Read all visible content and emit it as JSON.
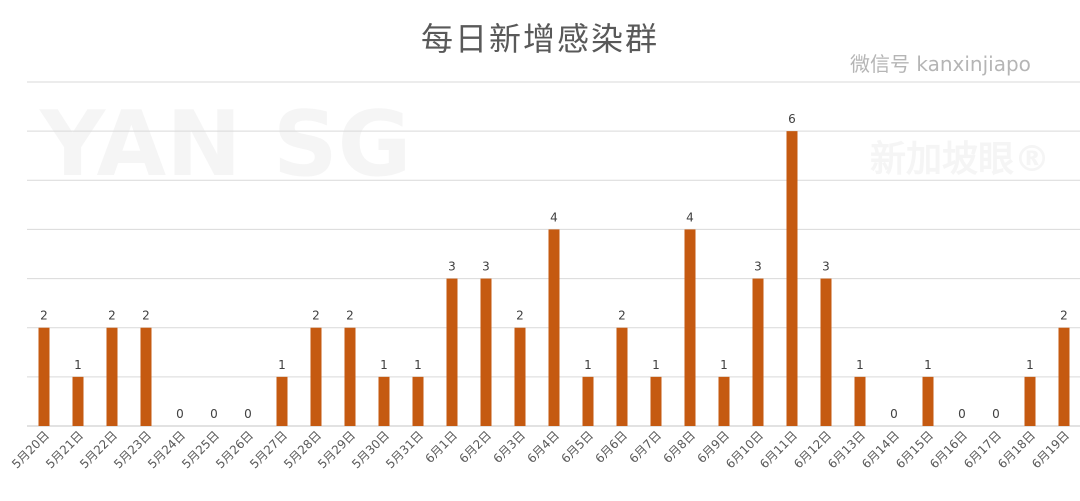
{
  "chart_data": {
    "type": "bar",
    "title": "每日新增感染群",
    "xlabel": "",
    "ylabel": "",
    "ylim": [
      0,
      7
    ],
    "grid": true,
    "legend": "none",
    "bar_color": "#C55A11",
    "categories": [
      "5月20日",
      "5月21日",
      "5月22日",
      "5月23日",
      "5月24日",
      "5月25日",
      "5月26日",
      "5月27日",
      "5月28日",
      "5月29日",
      "5月30日",
      "5月31日",
      "6月1日",
      "6月2日",
      "6月3日",
      "6月4日",
      "6月5日",
      "6月6日",
      "6月7日",
      "6月8日",
      "6月9日",
      "6月10日",
      "6月11日",
      "6月12日",
      "6月13日",
      "6月14日",
      "6月15日",
      "6月16日",
      "6月17日",
      "6月18日",
      "6月19日"
    ],
    "values": [
      2,
      1,
      2,
      2,
      0,
      0,
      0,
      1,
      2,
      2,
      1,
      1,
      3,
      3,
      2,
      4,
      1,
      2,
      1,
      4,
      1,
      3,
      6,
      3,
      1,
      0,
      1,
      0,
      0,
      1,
      2
    ]
  },
  "watermark": {
    "logo": "YAN SG",
    "logo_sub": "新加坡眼®",
    "wechat": "微信号 kanxinjiapo"
  }
}
